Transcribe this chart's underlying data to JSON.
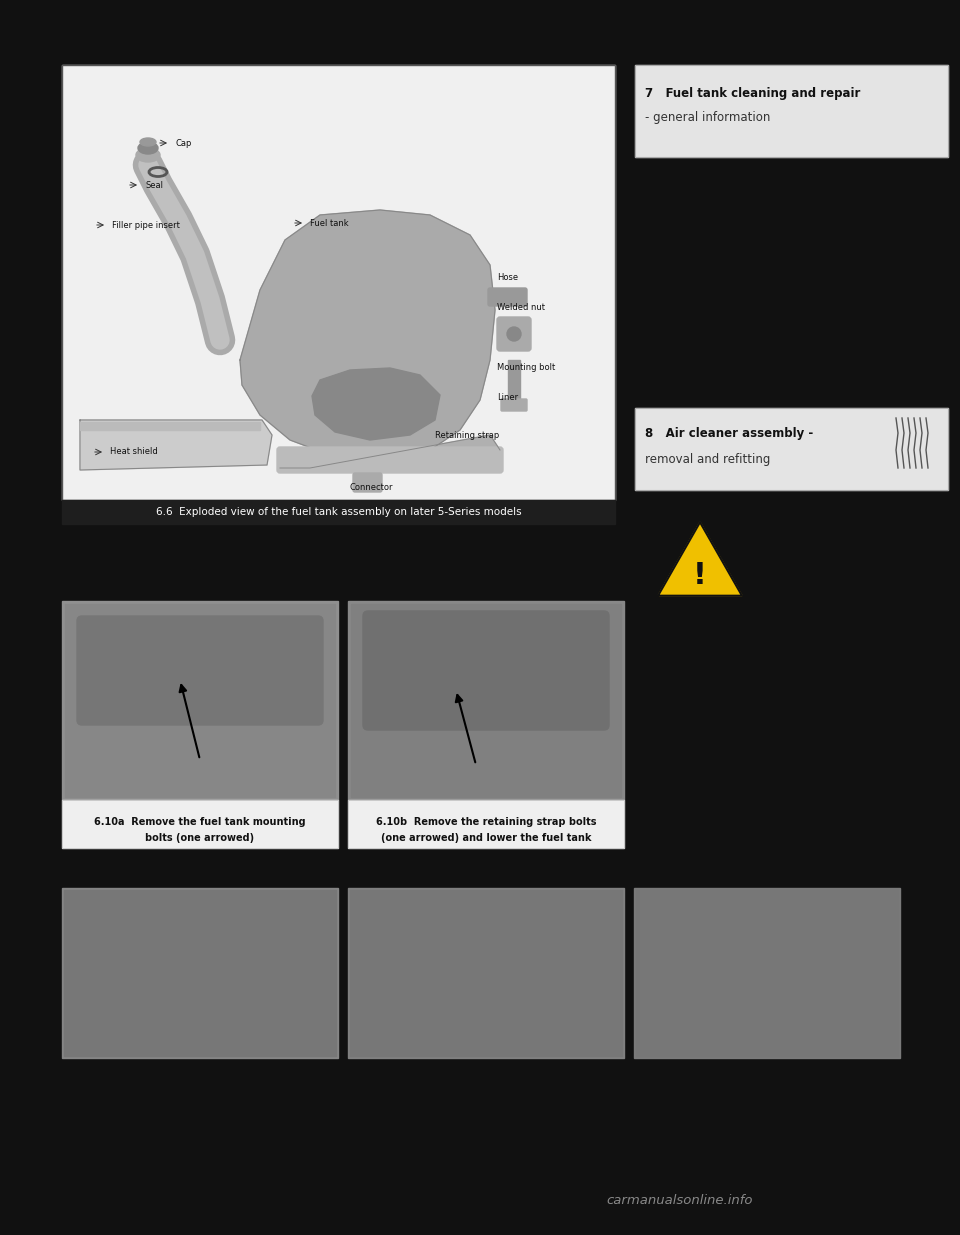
{
  "page_bg": "#111111",
  "sidebar_bg": "#e4e4e4",
  "caption_bar_bg": "#1e1e1e",
  "caption_bar_text": "#ffffff",
  "sub_caption_bg": "#efefef",
  "sub_caption_text": "#111111",
  "main_img_bg": "#f0f0f0",
  "section7_line1": "7   Fuel tank cleaning and repair",
  "section7_line2": "- general information",
  "section8_line1": "8   Air cleaner assembly -",
  "section8_line2": "removal and refitting",
  "main_caption": "6.6  Exploded view of the fuel tank assembly on later 5-Series models",
  "cap_610a_line1": "6.10a  Remove the fuel tank mounting",
  "cap_610a_line2": "bolts (one arrowed)",
  "cap_610b_line1": "6.10b  Remove the retaining strap bolts",
  "cap_610b_line2": "(one arrowed) and lower the fuel tank",
  "watermark": "carmanualsonline.info",
  "photo_gray_1": "#909090",
  "photo_gray_2": "#888888",
  "photo_gray_3": "#858585",
  "photo_gray_4": "#808080",
  "photo_gray_5": "#7a7a7a"
}
